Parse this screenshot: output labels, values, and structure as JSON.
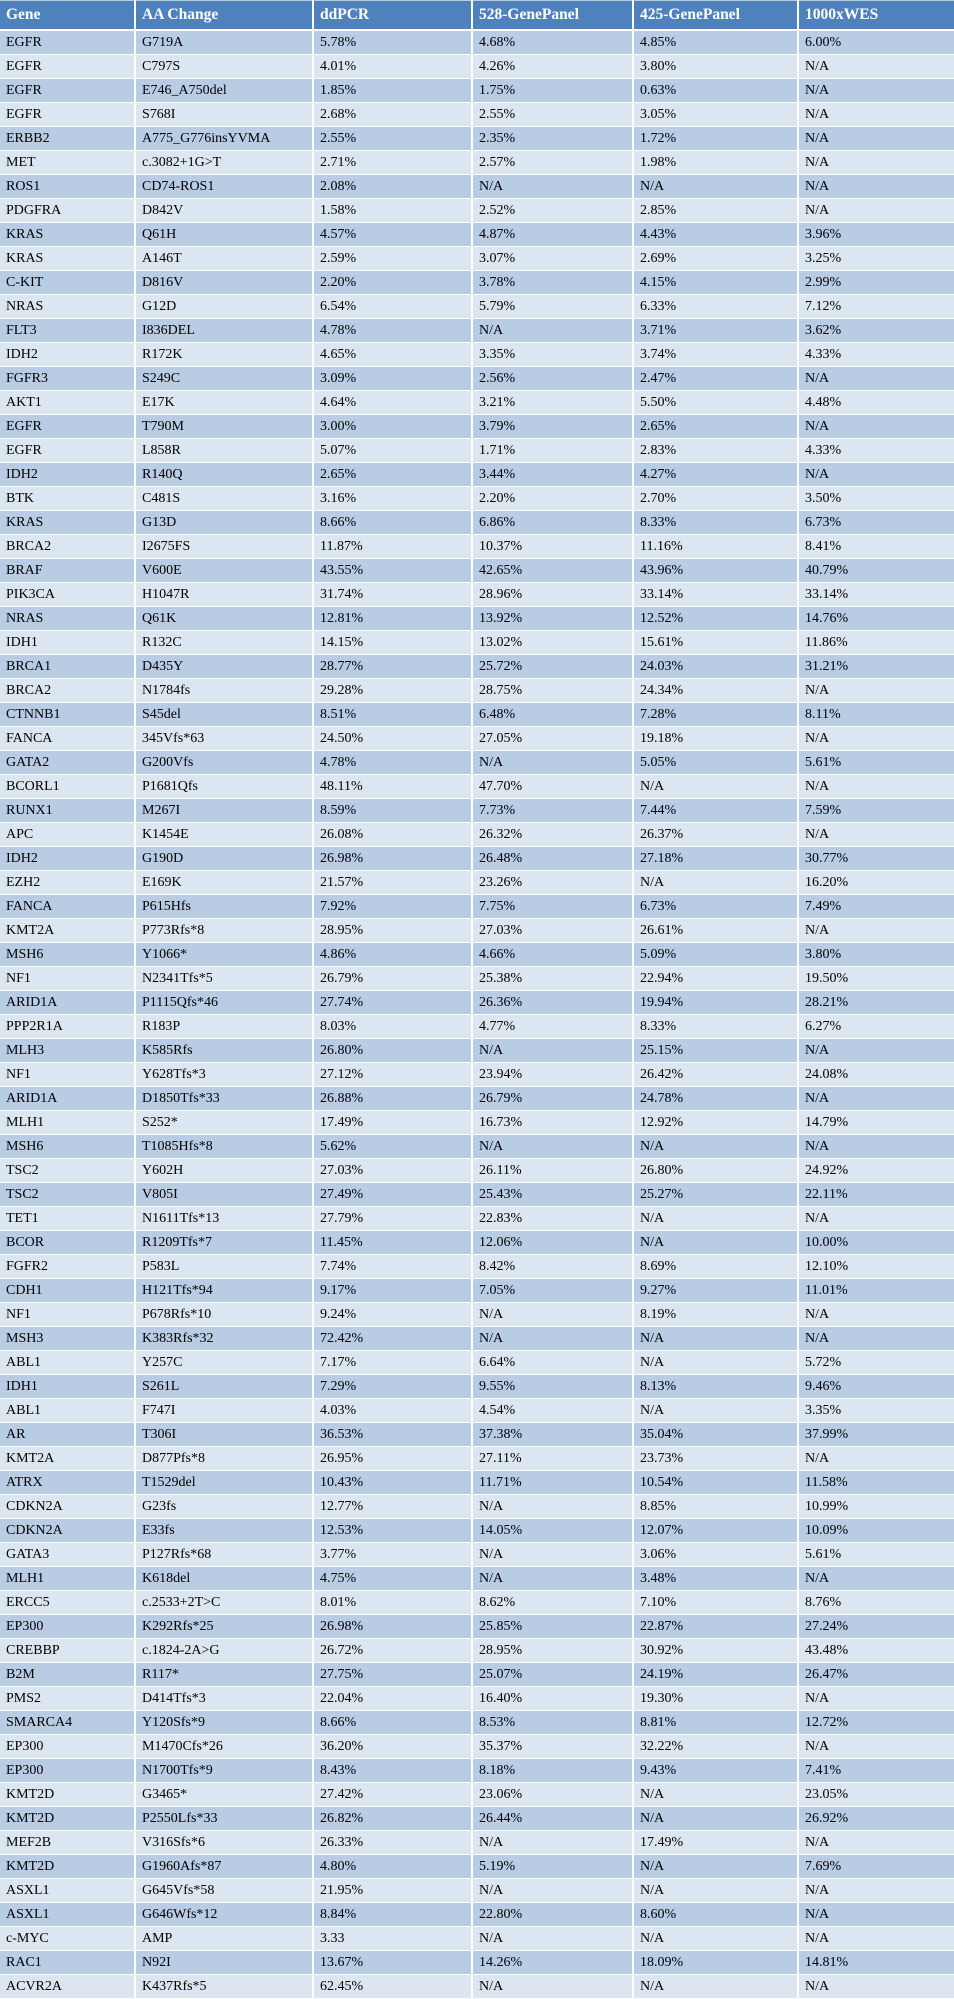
{
  "colors": {
    "header_bg": "#4f81bd",
    "header_text": "#ffffff",
    "row_dark": "#b8cce4",
    "row_light": "#dce6f1",
    "cell_text": "#000000",
    "grid_line": "#ffffff"
  },
  "table": {
    "columns": [
      "Gene",
      "AA Change",
      "ddPCR",
      "528-GenePanel",
      "425-GenePanel",
      "1000xWES"
    ],
    "rows": [
      [
        "EGFR",
        "G719A",
        "5.78%",
        "4.68%",
        "4.85%",
        "6.00%"
      ],
      [
        "EGFR",
        "C797S",
        "4.01%",
        "4.26%",
        "3.80%",
        "N/A"
      ],
      [
        "EGFR",
        "E746_A750del",
        "1.85%",
        "1.75%",
        "0.63%",
        "N/A"
      ],
      [
        "EGFR",
        "S768I",
        "2.68%",
        "2.55%",
        "3.05%",
        "N/A"
      ],
      [
        "ERBB2",
        "A775_G776insYVMA",
        "2.55%",
        "2.35%",
        "1.72%",
        "N/A"
      ],
      [
        "MET",
        "c.3082+1G>T",
        "2.71%",
        "2.57%",
        "1.98%",
        "N/A"
      ],
      [
        "ROS1",
        "CD74-ROS1",
        "2.08%",
        "N/A",
        "N/A",
        "N/A"
      ],
      [
        "PDGFRA",
        "D842V",
        "1.58%",
        "2.52%",
        "2.85%",
        "N/A"
      ],
      [
        "KRAS",
        "Q61H",
        "4.57%",
        "4.87%",
        "4.43%",
        "3.96%"
      ],
      [
        "KRAS",
        "A146T",
        "2.59%",
        "3.07%",
        "2.69%",
        "3.25%"
      ],
      [
        "C-KIT",
        "D816V",
        "2.20%",
        "3.78%",
        "4.15%",
        "2.99%"
      ],
      [
        "NRAS",
        "G12D",
        "6.54%",
        "5.79%",
        "6.33%",
        "7.12%"
      ],
      [
        "FLT3",
        "I836DEL",
        "4.78%",
        "N/A",
        "3.71%",
        "3.62%"
      ],
      [
        "IDH2",
        "R172K",
        "4.65%",
        "3.35%",
        "3.74%",
        "4.33%"
      ],
      [
        "FGFR3",
        "S249C",
        "3.09%",
        "2.56%",
        "2.47%",
        "N/A"
      ],
      [
        "AKT1",
        "E17K",
        "4.64%",
        "3.21%",
        "5.50%",
        "4.48%"
      ],
      [
        "EGFR",
        "T790M",
        "3.00%",
        "3.79%",
        "2.65%",
        "N/A"
      ],
      [
        "EGFR",
        "L858R",
        "5.07%",
        "1.71%",
        "2.83%",
        "4.33%"
      ],
      [
        "IDH2",
        "R140Q",
        "2.65%",
        "3.44%",
        "4.27%",
        "N/A"
      ],
      [
        "BTK",
        "C481S",
        "3.16%",
        "2.20%",
        "2.70%",
        "3.50%"
      ],
      [
        "KRAS",
        "G13D",
        "8.66%",
        "6.86%",
        "8.33%",
        "6.73%"
      ],
      [
        "BRCA2",
        "I2675FS",
        "11.87%",
        "10.37%",
        "11.16%",
        "8.41%"
      ],
      [
        "BRAF",
        "V600E",
        "43.55%",
        "42.65%",
        "43.96%",
        "40.79%"
      ],
      [
        "PIK3CA",
        "H1047R",
        "31.74%",
        "28.96%",
        "33.14%",
        "33.14%"
      ],
      [
        "NRAS",
        "Q61K",
        "12.81%",
        "13.92%",
        "12.52%",
        "14.76%"
      ],
      [
        "IDH1",
        "R132C",
        "14.15%",
        "13.02%",
        "15.61%",
        "11.86%"
      ],
      [
        "BRCA1",
        "D435Y",
        "28.77%",
        "25.72%",
        "24.03%",
        "31.21%"
      ],
      [
        "BRCA2",
        "N1784fs",
        "29.28%",
        "28.75%",
        "24.34%",
        "N/A"
      ],
      [
        "CTNNB1",
        "S45del",
        "8.51%",
        "6.48%",
        "7.28%",
        "8.11%"
      ],
      [
        "FANCA",
        "345Vfs*63",
        "24.50%",
        "27.05%",
        "19.18%",
        "N/A"
      ],
      [
        "GATA2",
        "G200Vfs",
        "4.78%",
        "N/A",
        "5.05%",
        "5.61%"
      ],
      [
        "BCORL1",
        "P1681Qfs",
        "48.11%",
        "47.70%",
        "N/A",
        "N/A"
      ],
      [
        "RUNX1",
        "M267I",
        "8.59%",
        "7.73%",
        "7.44%",
        "7.59%"
      ],
      [
        "APC",
        "K1454E",
        "26.08%",
        "26.32%",
        "26.37%",
        "N/A"
      ],
      [
        "IDH2",
        "G190D",
        "26.98%",
        "26.48%",
        "27.18%",
        "30.77%"
      ],
      [
        "EZH2",
        "E169K",
        "21.57%",
        "23.26%",
        "N/A",
        "16.20%"
      ],
      [
        "FANCA",
        "P615Hfs",
        "7.92%",
        "7.75%",
        "6.73%",
        "7.49%"
      ],
      [
        "KMT2A",
        "P773Rfs*8",
        "28.95%",
        "27.03%",
        "26.61%",
        "N/A"
      ],
      [
        "MSH6",
        "Y1066*",
        "4.86%",
        "4.66%",
        "5.09%",
        "3.80%"
      ],
      [
        "NF1",
        "N2341Tfs*5",
        "26.79%",
        "25.38%",
        "22.94%",
        "19.50%"
      ],
      [
        "ARID1A",
        "P1115Qfs*46",
        "27.74%",
        "26.36%",
        "19.94%",
        "28.21%"
      ],
      [
        "PPP2R1A",
        "R183P",
        "8.03%",
        "4.77%",
        "8.33%",
        "6.27%"
      ],
      [
        "MLH3",
        "K585Rfs",
        "26.80%",
        "N/A",
        "25.15%",
        "N/A"
      ],
      [
        "NF1",
        "Y628Tfs*3",
        "27.12%",
        "23.94%",
        "26.42%",
        "24.08%"
      ],
      [
        "ARID1A",
        "D1850Tfs*33",
        "26.88%",
        "26.79%",
        "24.78%",
        "N/A"
      ],
      [
        "MLH1",
        "S252*",
        "17.49%",
        "16.73%",
        "12.92%",
        "14.79%"
      ],
      [
        "MSH6",
        "T1085Hfs*8",
        "5.62%",
        "N/A",
        "N/A",
        "N/A"
      ],
      [
        "TSC2",
        "Y602H",
        "27.03%",
        "26.11%",
        "26.80%",
        "24.92%"
      ],
      [
        "TSC2",
        "V805I",
        "27.49%",
        "25.43%",
        "25.27%",
        "22.11%"
      ],
      [
        "TET1",
        "N1611Tfs*13",
        "27.79%",
        "22.83%",
        "N/A",
        "N/A"
      ],
      [
        "BCOR",
        "R1209Tfs*7",
        "11.45%",
        "12.06%",
        "N/A",
        "10.00%"
      ],
      [
        "FGFR2",
        "P583L",
        "7.74%",
        "8.42%",
        "8.69%",
        "12.10%"
      ],
      [
        "CDH1",
        "H121Tfs*94",
        "9.17%",
        "7.05%",
        "9.27%",
        "11.01%"
      ],
      [
        "NF1",
        "P678Rfs*10",
        "9.24%",
        "N/A",
        "8.19%",
        "N/A"
      ],
      [
        "MSH3",
        "K383Rfs*32",
        "72.42%",
        "N/A",
        "N/A",
        "N/A"
      ],
      [
        "ABL1",
        "Y257C",
        "7.17%",
        "6.64%",
        "N/A",
        "5.72%"
      ],
      [
        "IDH1",
        "S261L",
        "7.29%",
        "9.55%",
        "8.13%",
        "9.46%"
      ],
      [
        "ABL1",
        "F747I",
        "4.03%",
        "4.54%",
        "N/A",
        "3.35%"
      ],
      [
        "AR",
        "T306I",
        "36.53%",
        "37.38%",
        "35.04%",
        "37.99%"
      ],
      [
        "KMT2A",
        "D877Pfs*8",
        "26.95%",
        "27.11%",
        "23.73%",
        "N/A"
      ],
      [
        "ATRX",
        "T1529del",
        "10.43%",
        "11.71%",
        "10.54%",
        "11.58%"
      ],
      [
        "CDKN2A",
        "G23fs",
        "12.77%",
        "N/A",
        "8.85%",
        "10.99%"
      ],
      [
        "CDKN2A",
        "E33fs",
        "12.53%",
        "14.05%",
        "12.07%",
        "10.09%"
      ],
      [
        "GATA3",
        "P127Rfs*68",
        "3.77%",
        "N/A",
        "3.06%",
        "5.61%"
      ],
      [
        "MLH1",
        "K618del",
        "4.75%",
        "N/A",
        "3.48%",
        "N/A"
      ],
      [
        "ERCC5",
        "c.2533+2T>C",
        "8.01%",
        "8.62%",
        "7.10%",
        "8.76%"
      ],
      [
        "EP300",
        "K292Rfs*25",
        "26.98%",
        "25.85%",
        "22.87%",
        "27.24%"
      ],
      [
        "CREBBP",
        "c.1824-2A>G",
        "26.72%",
        "28.95%",
        "30.92%",
        "43.48%"
      ],
      [
        "B2M",
        "R117*",
        "27.75%",
        "25.07%",
        "24.19%",
        "26.47%"
      ],
      [
        "PMS2",
        "D414Tfs*3",
        "22.04%",
        "16.40%",
        "19.30%",
        "N/A"
      ],
      [
        "SMARCA4",
        "Y120Sfs*9",
        "8.66%",
        "8.53%",
        "8.81%",
        "12.72%"
      ],
      [
        "EP300",
        "M1470Cfs*26",
        "36.20%",
        "35.37%",
        "32.22%",
        "N/A"
      ],
      [
        "EP300",
        "N1700Tfs*9",
        "8.43%",
        "8.18%",
        "9.43%",
        "7.41%"
      ],
      [
        "KMT2D",
        "G3465*",
        "27.42%",
        "23.06%",
        "N/A",
        "23.05%"
      ],
      [
        "KMT2D",
        "P2550Lfs*33",
        "26.82%",
        "26.44%",
        "N/A",
        "26.92%"
      ],
      [
        "MEF2B",
        "V316Sfs*6",
        "26.33%",
        "N/A",
        "17.49%",
        "N/A"
      ],
      [
        "KMT2D",
        "G1960Afs*87",
        "4.80%",
        "5.19%",
        "N/A",
        "7.69%"
      ],
      [
        "ASXL1",
        "G645Vfs*58",
        "21.95%",
        "N/A",
        "N/A",
        "N/A"
      ],
      [
        "ASXL1",
        "G646Wfs*12",
        "8.84%",
        "22.80%",
        "8.60%",
        "N/A"
      ],
      [
        "c-MYC",
        "AMP",
        "3.33",
        "N/A",
        "N/A",
        "N/A"
      ],
      [
        "RAC1",
        "N92I",
        "13.67%",
        "14.26%",
        "18.09%",
        "14.81%"
      ],
      [
        "ACVR2A",
        "K437Rfs*5",
        "62.45%",
        "N/A",
        "N/A",
        "N/A"
      ]
    ]
  }
}
